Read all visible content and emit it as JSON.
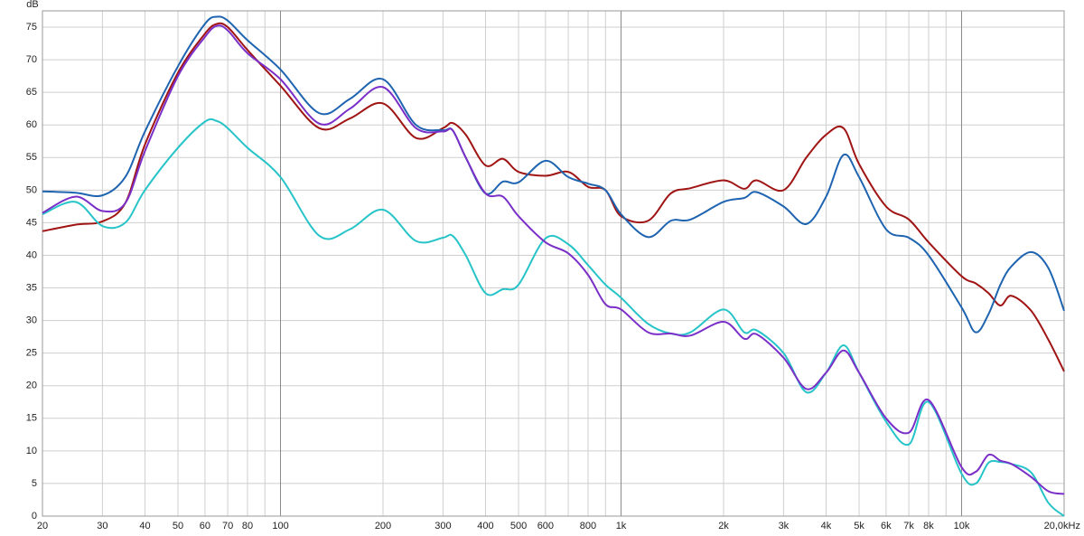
{
  "chart_data": {
    "type": "line",
    "y_label": "dB",
    "log_x": true,
    "grid": true,
    "x": [
      20,
      25,
      30,
      35,
      40,
      50,
      60,
      65,
      70,
      80,
      100,
      130,
      160,
      200,
      250,
      300,
      320,
      350,
      400,
      450,
      500,
      600,
      700,
      800,
      900,
      1000,
      1200,
      1400,
      1600,
      2000,
      2300,
      2500,
      3000,
      3500,
      4000,
      4500,
      5000,
      6000,
      7000,
      8000,
      10000,
      11000,
      12000,
      13000,
      14000,
      16000,
      18000,
      20000
    ],
    "series": [
      {
        "color": "#a01414",
        "values": [
          43.7,
          44.7,
          45.2,
          48,
          57,
          68,
          74,
          75.5,
          75,
          71.5,
          66,
          59.5,
          61,
          63.3,
          58,
          59.5,
          60.3,
          58.5,
          53.8,
          54.8,
          52.8,
          52.2,
          52.8,
          50.5,
          50,
          46,
          45.3,
          49.5,
          50.3,
          51.5,
          50.2,
          51.5,
          50,
          55,
          58.5,
          59.5,
          54,
          47.5,
          45.5,
          42,
          36.8,
          35.7,
          34.2,
          32.3,
          33.8,
          31.5,
          27,
          22.2
        ]
      },
      {
        "color": "#1e64b0",
        "values": [
          49.8,
          49.6,
          49.2,
          52,
          59,
          69,
          75.5,
          76.6,
          76,
          73,
          68.5,
          61.8,
          64,
          67,
          60,
          59.2,
          59.2,
          55,
          49.5,
          51.3,
          51.2,
          54.5,
          52,
          51,
          50,
          46.3,
          42.8,
          45.3,
          45.5,
          48.2,
          48.8,
          49.7,
          47.5,
          44.8,
          49,
          55.4,
          52,
          44,
          42.7,
          40,
          32,
          28.2,
          31,
          35.5,
          38.3,
          40.5,
          38,
          31.5
        ]
      },
      {
        "color": "#26c4c8",
        "values": [
          46.3,
          48.2,
          44.5,
          45,
          50,
          56.5,
          60.5,
          60.6,
          59.5,
          56.5,
          52,
          43,
          44,
          47,
          42.2,
          42.7,
          43,
          40,
          34.2,
          34.8,
          35.5,
          42.6,
          41.7,
          38.5,
          35.5,
          33.5,
          29.5,
          28,
          28.2,
          31.7,
          28.2,
          28.5,
          25,
          19,
          22,
          26.2,
          22,
          14.5,
          11,
          17.5,
          6.5,
          5,
          8.2,
          8.3,
          8,
          6.7,
          2,
          0
        ]
      },
      {
        "color": "#7a2fc8",
        "values": [
          46.5,
          49,
          46.8,
          48,
          56,
          67.5,
          73.5,
          75.2,
          74.5,
          71,
          67,
          60.2,
          62.5,
          65.8,
          59.5,
          59,
          59.2,
          55,
          49.5,
          49,
          46,
          42,
          40.3,
          37,
          32.5,
          31.7,
          28.2,
          28,
          27.7,
          29.8,
          27.2,
          27.9,
          24.3,
          19.5,
          22,
          25.4,
          22,
          15,
          12.8,
          17.8,
          7.5,
          6.8,
          9.4,
          8.5,
          8,
          6,
          3.8,
          3.4
        ]
      }
    ],
    "xlim": [
      20,
      20000
    ],
    "xticks": [
      20,
      30,
      40,
      50,
      60,
      70,
      80,
      {
        "value": 90
      },
      100,
      200,
      300,
      400,
      500,
      600,
      {
        "value": 700
      },
      800,
      {
        "value": 900
      },
      {
        "value": 1000,
        "label": "1k"
      },
      {
        "value": 2000,
        "label": "2k"
      },
      {
        "value": 3000,
        "label": "3k"
      },
      {
        "value": 4000,
        "label": "4k"
      },
      {
        "value": 5000,
        "label": "5k"
      },
      {
        "value": 6000,
        "label": "6k"
      },
      {
        "value": 7000,
        "label": "7k"
      },
      {
        "value": 8000,
        "label": "8k"
      },
      {
        "value": 9000
      },
      {
        "value": 10000,
        "label": "10k"
      },
      {
        "value": 20000,
        "label": "20,0kHz"
      }
    ],
    "ylim": [
      0,
      77.5
    ],
    "yticks": [
      0,
      5,
      10,
      15,
      20,
      25,
      30,
      35,
      40,
      45,
      50,
      55,
      60,
      65,
      70,
      75
    ]
  }
}
